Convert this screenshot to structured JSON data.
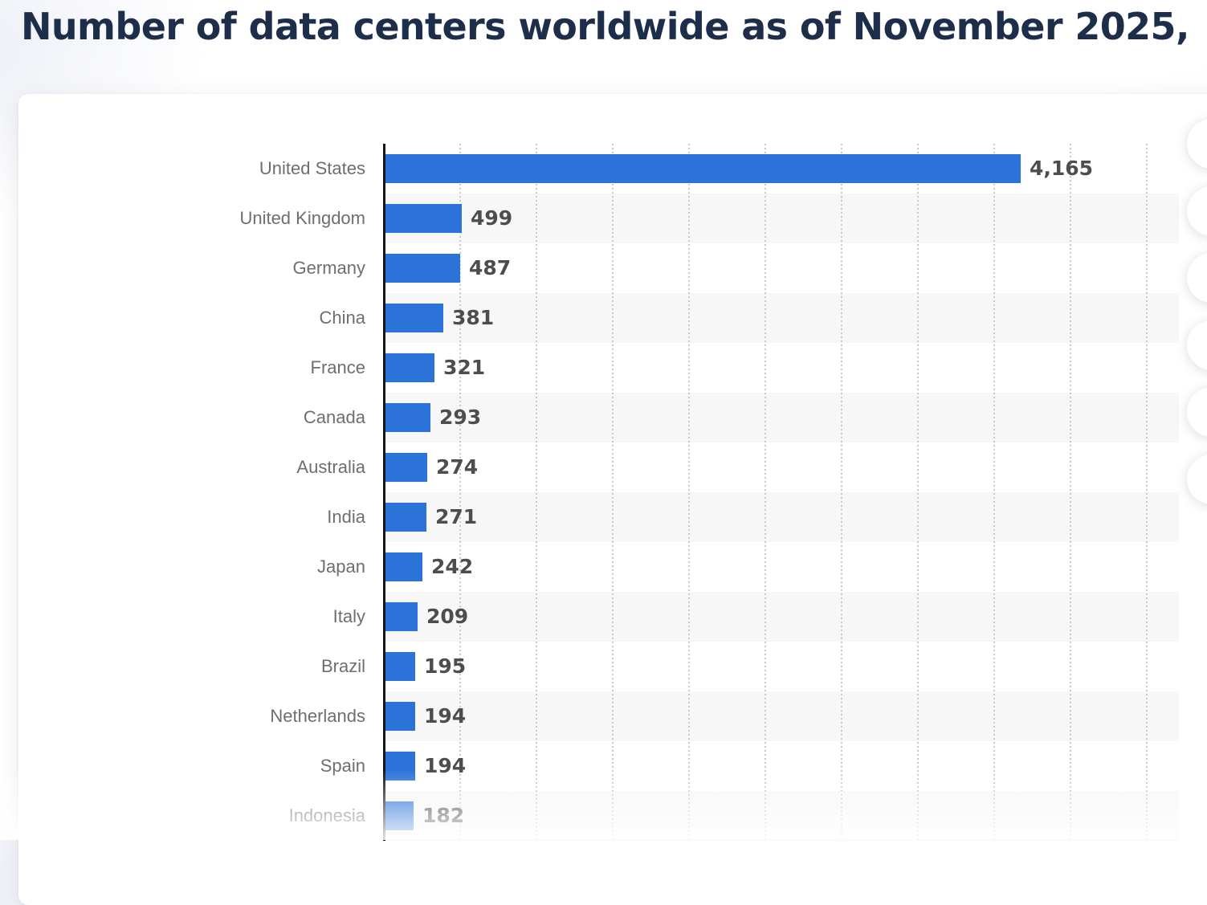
{
  "page": {
    "title": "Number of data centers worldwide as of November 2025,"
  },
  "chart_data": {
    "type": "bar",
    "orientation": "horizontal",
    "title": "Number of data centers worldwide as of November 2025,",
    "categories": [
      "United States",
      "United Kingdom",
      "Germany",
      "China",
      "France",
      "Canada",
      "Australia",
      "India",
      "Japan",
      "Italy",
      "Brazil",
      "Netherlands",
      "Spain",
      "Indonesia"
    ],
    "values": [
      4165,
      499,
      487,
      381,
      321,
      293,
      274,
      271,
      242,
      209,
      195,
      194,
      194,
      182
    ],
    "value_labels": [
      "4,165",
      "499",
      "487",
      "381",
      "321",
      "293",
      "274",
      "271",
      "242",
      "209",
      "195",
      "194",
      "194",
      "182"
    ],
    "xlabel": "",
    "ylabel": "",
    "xlim": [
      0,
      5000
    ],
    "gridline_step": 500,
    "grid": "vertical-dotted",
    "legend": "none",
    "row_striping": "alternate-even-rows-shaded",
    "last_row_faded": true
  },
  "colors": {
    "title_text": "#1c2e49",
    "bar": "#2b72d9",
    "category_label": "#6e6e6e",
    "value_label": "#4d4d4d",
    "row_stripe": "#f7f7f8",
    "gridline": "#c9c9c9",
    "axis": "#171717",
    "card_background": "#ffffff"
  },
  "side_toolbar": {
    "button_count": 6,
    "buttons": [
      {
        "label": ""
      },
      {
        "label": ""
      },
      {
        "label": ""
      },
      {
        "label": ""
      },
      {
        "label": ""
      },
      {
        "label": ""
      }
    ]
  }
}
